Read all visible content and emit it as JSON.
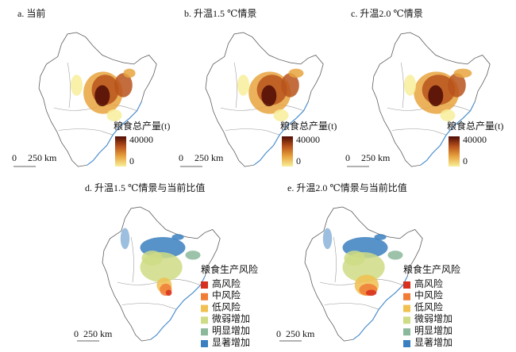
{
  "panels": [
    {
      "title": "a. 当前",
      "legend_title": "粮食总产量(t)",
      "legend_ticks": [
        40000,
        0
      ],
      "scale": [
        "0",
        "250 km"
      ]
    },
    {
      "title": "b. 升温1.5 ℃情景",
      "legend_title": "粮食总产量(t)",
      "legend_ticks": [
        40000,
        0
      ],
      "scale": [
        "0",
        "250 km"
      ]
    },
    {
      "title": "c. 升温2.0 ℃情景",
      "legend_title": "粮食总产量(t)",
      "legend_ticks": [
        40000,
        0
      ],
      "scale": [
        "0",
        "250 km"
      ]
    }
  ],
  "production_colors": [
    "#f8ee9a",
    "#e8a43e",
    "#b8531c",
    "#4e0b05"
  ],
  "risk_panels": [
    {
      "title": "d. 升温1.5 ℃情景与当前比值",
      "legend_title": "粮食生产风险",
      "scale": [
        "0",
        "250 km"
      ],
      "items": [
        {
          "label": "高风险",
          "color": "#d7301f"
        },
        {
          "label": "中风险",
          "color": "#f07c35"
        },
        {
          "label": "低风险",
          "color": "#f0c050"
        },
        {
          "label": "微弱增加",
          "color": "#cfdc85"
        },
        {
          "label": "明显增加",
          "color": "#8bb89a"
        },
        {
          "label": "显著增加",
          "color": "#3a7fc0"
        }
      ]
    },
    {
      "title": "e. 升温2.0 ℃情景与当前比值",
      "legend_title": "粮食生产风险",
      "scale": [
        "0",
        "250 km"
      ],
      "items": [
        {
          "label": "高风险",
          "color": "#d7301f"
        },
        {
          "label": "中风险",
          "color": "#f07c35"
        },
        {
          "label": "低风险",
          "color": "#f0c050"
        },
        {
          "label": "微弱增加",
          "color": "#cfdc85"
        },
        {
          "label": "明显增加",
          "color": "#8bb89a"
        },
        {
          "label": "显著增加",
          "color": "#3a7fc0"
        }
      ]
    }
  ]
}
